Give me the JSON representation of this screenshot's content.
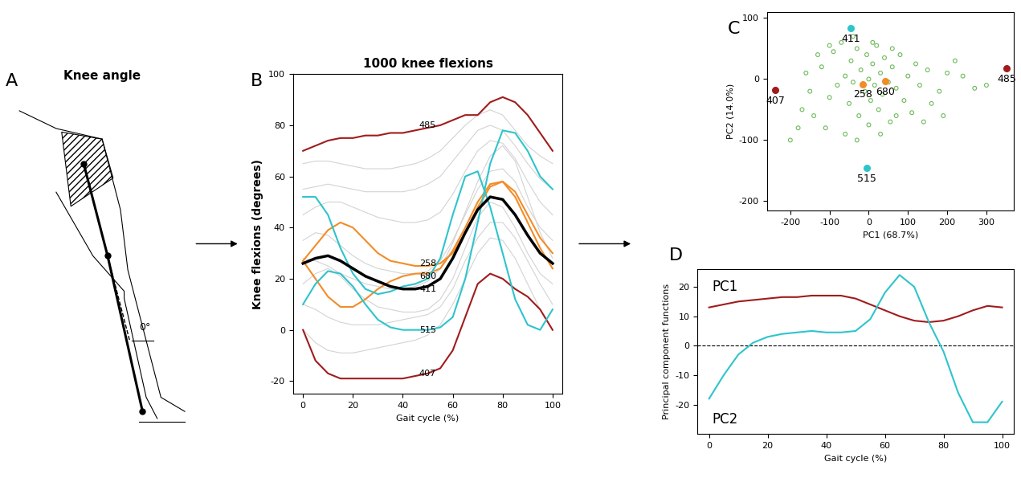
{
  "diagram": {
    "panel": "A",
    "title": "Knee angle",
    "angle_label": "0°"
  },
  "chart_data": [
    {
      "panel": "B",
      "type": "line",
      "title": "1000 knee flexions",
      "x_label": "Gait cycle (%)",
      "y_label": "Knee flexions (degrees)",
      "x": [
        0,
        5,
        10,
        15,
        20,
        25,
        30,
        35,
        40,
        45,
        50,
        55,
        60,
        65,
        70,
        75,
        80,
        85,
        90,
        95,
        100
      ],
      "xlim": [
        -4,
        104
      ],
      "xticks": [
        0,
        20,
        40,
        60,
        80,
        100
      ],
      "ylim": [
        -25,
        100
      ],
      "yticks": [
        -20,
        0,
        20,
        40,
        60,
        80,
        100
      ],
      "label_x": 50,
      "background_color": "#d3d3d3",
      "background": [
        [
          45,
          48,
          50,
          50,
          48,
          46,
          44,
          43,
          42,
          42,
          43,
          46,
          53,
          62,
          70,
          74,
          73,
          67,
          58,
          50,
          45
        ],
        [
          10,
          8,
          5,
          3,
          2,
          2,
          2,
          3,
          4,
          5,
          6,
          9,
          16,
          27,
          36,
          42,
          42,
          36,
          27,
          18,
          10
        ],
        [
          35,
          38,
          37,
          33,
          29,
          26,
          24,
          23,
          22,
          22,
          23,
          27,
          35,
          45,
          55,
          62,
          63,
          58,
          48,
          40,
          35
        ],
        [
          55,
          56,
          57,
          56,
          55,
          54,
          54,
          54,
          54,
          55,
          57,
          60,
          66,
          72,
          78,
          80,
          78,
          72,
          65,
          59,
          55
        ],
        [
          18,
          22,
          24,
          21,
          16,
          12,
          9,
          8,
          7,
          7,
          8,
          12,
          20,
          32,
          44,
          50,
          48,
          40,
          30,
          22,
          18
        ],
        [
          28,
          27,
          25,
          22,
          20,
          18,
          17,
          16,
          16,
          17,
          19,
          24,
          34,
          46,
          58,
          68,
          72,
          66,
          52,
          38,
          28
        ],
        [
          65,
          66,
          66,
          65,
          64,
          63,
          63,
          63,
          64,
          65,
          67,
          70,
          75,
          80,
          84,
          86,
          84,
          78,
          72,
          68,
          65
        ],
        [
          0,
          -5,
          -8,
          -9,
          -9,
          -8,
          -7,
          -6,
          -5,
          -4,
          -2,
          2,
          10,
          20,
          30,
          36,
          35,
          28,
          18,
          8,
          0
        ]
      ],
      "series": [
        {
          "name": "485",
          "color": "#a01c1c",
          "label_y": 80,
          "values": [
            70,
            72,
            74,
            75,
            75,
            76,
            76,
            77,
            77,
            78,
            79,
            80,
            82,
            84,
            84,
            89,
            91,
            89,
            84,
            77,
            70
          ]
        },
        {
          "name": "407",
          "color": "#a01c1c",
          "label_y": -17,
          "values": [
            0,
            -12,
            -17,
            -19,
            -19,
            -19,
            -19,
            -19,
            -19,
            -18,
            -17,
            -15,
            -8,
            5,
            18,
            22,
            20,
            16,
            13,
            8,
            0
          ]
        },
        {
          "name": "258",
          "color": "#f28c28",
          "label_y": 26,
          "values": [
            27,
            33,
            39,
            42,
            40,
            35,
            30,
            27,
            26,
            25,
            25,
            26,
            30,
            38,
            48,
            56,
            58,
            54,
            45,
            36,
            30
          ]
        },
        {
          "name": "680",
          "color": "#f28c28",
          "label_y": 21,
          "values": [
            27,
            20,
            13,
            9,
            9,
            12,
            16,
            19,
            21,
            22,
            22,
            24,
            31,
            40,
            50,
            57,
            58,
            52,
            42,
            32,
            24
          ]
        },
        {
          "name": "411",
          "color": "#2ec4cc",
          "label_y": 16,
          "values": [
            52,
            52,
            45,
            32,
            22,
            16,
            14,
            15,
            17,
            18,
            20,
            28,
            45,
            60,
            62,
            48,
            30,
            12,
            2,
            0,
            8
          ]
        },
        {
          "name": "515",
          "color": "#2ec4cc",
          "label_y": 0,
          "values": [
            10,
            18,
            23,
            22,
            17,
            10,
            4,
            1,
            0,
            0,
            0,
            1,
            5,
            20,
            42,
            65,
            78,
            77,
            70,
            60,
            55
          ]
        },
        {
          "color": "#000000",
          "values": [
            26,
            28,
            29,
            27,
            24,
            21,
            19,
            17,
            16,
            16,
            17,
            20,
            28,
            38,
            47,
            52,
            51,
            45,
            37,
            30,
            26
          ]
        }
      ]
    },
    {
      "panel": "C",
      "type": "scatter",
      "x_label": "PC1 (68.7%)",
      "y_label": "PC2 (14.0%)",
      "xlim": [
        -260,
        370
      ],
      "xticks": [
        -200,
        -100,
        0,
        100,
        200,
        300
      ],
      "ylim": [
        -215,
        110
      ],
      "yticks": [
        -200,
        -100,
        0,
        100
      ],
      "color": "#6dbb5a",
      "marker": "hollow",
      "x": [
        -120,
        -100,
        -90,
        -80,
        -70,
        -60,
        -50,
        -45,
        -40,
        -30,
        -25,
        -20,
        -10,
        -5,
        0,
        5,
        10,
        15,
        20,
        25,
        30,
        35,
        40,
        50,
        55,
        60,
        70,
        80,
        90,
        100,
        110,
        120,
        130,
        150,
        160,
        180,
        200,
        220,
        240,
        270,
        300,
        -150,
        -160,
        -170,
        -180,
        -200,
        -140,
        -110,
        -60,
        -30,
        0,
        30,
        70,
        -100,
        -40,
        10,
        60,
        -130,
        140,
        190
      ],
      "y": [
        20,
        -30,
        45,
        -10,
        60,
        5,
        -40,
        30,
        -5,
        50,
        -60,
        15,
        -20,
        40,
        0,
        -35,
        25,
        -10,
        55,
        -50,
        10,
        -25,
        35,
        -5,
        -70,
        20,
        -15,
        40,
        -35,
        5,
        -55,
        25,
        -10,
        15,
        -40,
        -20,
        10,
        30,
        5,
        -15,
        -10,
        -20,
        10,
        -50,
        -80,
        -100,
        -60,
        -80,
        -90,
        -100,
        -75,
        -90,
        -60,
        55,
        70,
        60,
        50,
        40,
        -70,
        -60
      ],
      "highlights": [
        {
          "name": "411",
          "x": -45,
          "y": 83,
          "color": "#2ec4cc"
        },
        {
          "name": "515",
          "x": -5,
          "y": -145,
          "color": "#2ec4cc"
        },
        {
          "name": "258",
          "x": -15,
          "y": -8,
          "color": "#f28c28"
        },
        {
          "name": "680",
          "x": 43,
          "y": -3,
          "color": "#f28c28"
        },
        {
          "name": "407",
          "x": -238,
          "y": -18,
          "color": "#a01c1c"
        },
        {
          "name": "485",
          "x": 352,
          "y": 18,
          "color": "#a01c1c"
        }
      ]
    },
    {
      "panel": "D",
      "type": "line",
      "x_label": "Gait cycle (%)",
      "y_label": "Principal component functions",
      "x": [
        0,
        5,
        10,
        15,
        20,
        25,
        30,
        35,
        40,
        45,
        50,
        55,
        60,
        65,
        70,
        75,
        80,
        85,
        90,
        95,
        100
      ],
      "xlim": [
        -4,
        104
      ],
      "xticks": [
        0,
        20,
        40,
        60,
        80,
        100
      ],
      "ylim": [
        -30,
        26
      ],
      "yticks": [
        -20,
        -10,
        0,
        10,
        20
      ],
      "hlines": [
        0
      ],
      "series": [
        {
          "name": "PC1",
          "color": "#a01c1c",
          "label_x": 1,
          "label_y": 20,
          "values": [
            13,
            14,
            15,
            15.5,
            16,
            16.5,
            16.5,
            17,
            17,
            17,
            16,
            14,
            12,
            10,
            8.5,
            8,
            8.5,
            10,
            12,
            13.5,
            13
          ]
        },
        {
          "name": "PC2",
          "color": "#2ec4cc",
          "label_x": 1,
          "label_y": -25,
          "values": [
            -18,
            -10,
            -3,
            1,
            3,
            4,
            4.5,
            5,
            4.5,
            4.5,
            5,
            9,
            18,
            24,
            20,
            8,
            -2,
            -16,
            -26,
            -26,
            -19
          ]
        }
      ]
    }
  ]
}
